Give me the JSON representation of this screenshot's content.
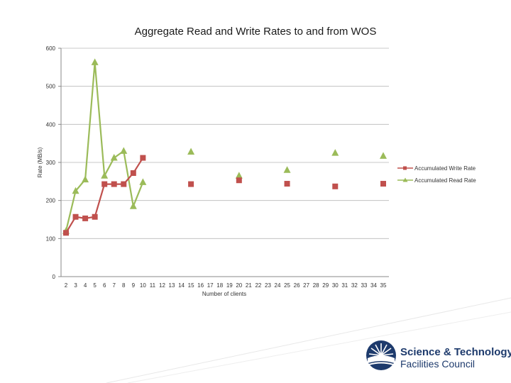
{
  "chart_data": {
    "type": "line",
    "title": "Aggregate Read and Write Rates to and from WOS",
    "xlabel": "Number of clients",
    "ylabel": "Rate (MB/s)",
    "ylim": [
      0,
      600
    ],
    "yticks": [
      0,
      100,
      200,
      300,
      400,
      500,
      600
    ],
    "categories": [
      "2",
      "3",
      "4",
      "5",
      "6",
      "7",
      "8",
      "9",
      "10",
      "11",
      "12",
      "13",
      "14",
      "15",
      "16",
      "17",
      "18",
      "19",
      "20",
      "21",
      "22",
      "23",
      "24",
      "25",
      "26",
      "27",
      "28",
      "29",
      "30",
      "31",
      "32",
      "33",
      "34",
      "35"
    ],
    "grid": "horizontal",
    "legend_position": "right",
    "series": [
      {
        "name": "Accumulated Write Rate",
        "color": "#c0504d",
        "marker": "square",
        "values": [
          115,
          157,
          153,
          157,
          243,
          243,
          243,
          272,
          312,
          null,
          null,
          null,
          null,
          243,
          null,
          null,
          null,
          null,
          253,
          null,
          null,
          null,
          null,
          244,
          null,
          null,
          null,
          null,
          237,
          null,
          null,
          null,
          null,
          244
        ]
      },
      {
        "name": "Accumulated Read Rate",
        "color": "#9bbb59",
        "marker": "triangle",
        "values": [
          120,
          225,
          255,
          563,
          265,
          312,
          330,
          185,
          248,
          null,
          null,
          null,
          null,
          328,
          null,
          null,
          null,
          null,
          265,
          null,
          null,
          null,
          null,
          280,
          null,
          null,
          null,
          null,
          325,
          null,
          null,
          null,
          null,
          317
        ]
      }
    ]
  },
  "logo": {
    "line1": "Science & Technology",
    "line2": "Facilities Council"
  }
}
